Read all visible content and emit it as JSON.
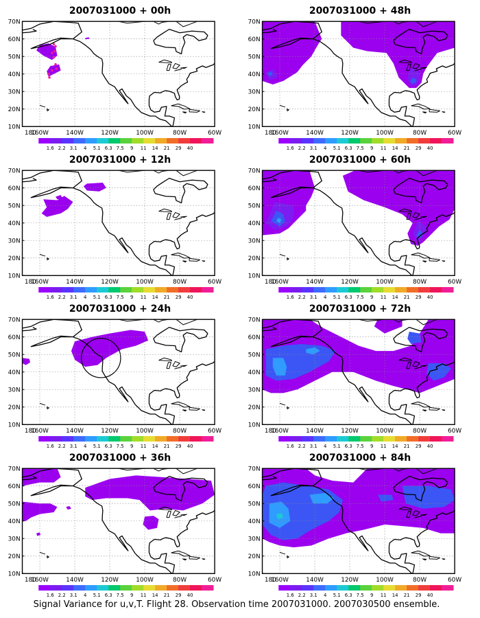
{
  "figure": {
    "caption": "Signal Variance for u,v,T. Flight 28. Observation time 2007031000. 2007030500 ensemble.",
    "lat_labels": [
      "70N",
      "60N",
      "50N",
      "40N",
      "30N",
      "20N",
      "10N"
    ],
    "lon_labels": [
      "180",
      "160W",
      "140W",
      "120W",
      "100W",
      "80W",
      "60W"
    ],
    "colorbar": {
      "labels": [
        "1.6",
        "2.2",
        "3.1",
        "4",
        "5.1",
        "6.3",
        "7.5",
        "9",
        "11",
        "14",
        "21",
        "29",
        "40"
      ],
      "colors": [
        "#9c00ff",
        "#7a1cf0",
        "#5a33ff",
        "#3d6bff",
        "#2f9cff",
        "#1ccad6",
        "#00c86e",
        "#5ad23c",
        "#a0dc28",
        "#e6dc32",
        "#f0aa28",
        "#f06e28",
        "#f03c3c",
        "#f0145a",
        "#f01e96"
      ]
    },
    "panels": [
      {
        "title": "2007031000 + 00h",
        "lead": "00h"
      },
      {
        "title": "2007031000 + 48h",
        "lead": "48h"
      },
      {
        "title": "2007031000 + 12h",
        "lead": "12h"
      },
      {
        "title": "2007031000 + 60h",
        "lead": "60h"
      },
      {
        "title": "2007031000 + 24h",
        "lead": "24h"
      },
      {
        "title": "2007031000 + 72h",
        "lead": "72h"
      },
      {
        "title": "2007031000 + 36h",
        "lead": "36h"
      },
      {
        "title": "2007031000 + 84h",
        "lead": "84h"
      }
    ]
  }
}
